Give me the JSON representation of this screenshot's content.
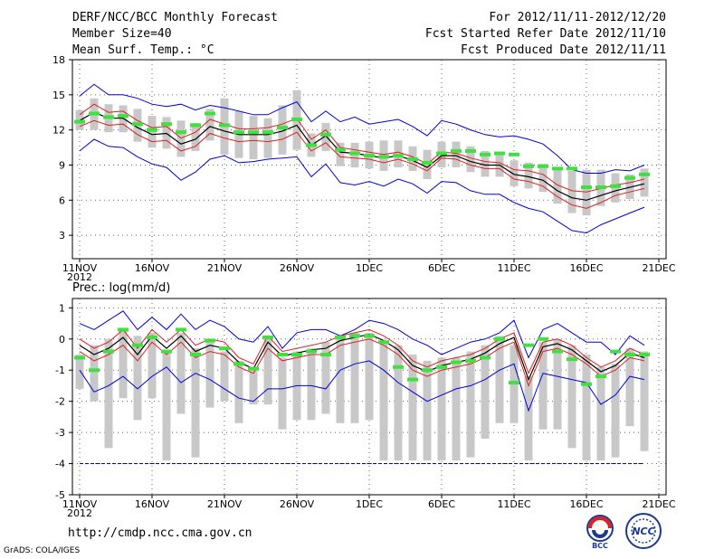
{
  "header": {
    "title": "DERF/NCC/BCC Monthly Forecast",
    "members": "Member Size=40",
    "variable": "Mean Surf. Temp.: °C",
    "period": "For 2012/11/11-2012/12/20",
    "started": "Fcst Started Refer Date 2012/11/10",
    "produced": "Fcst Produced Date 2012/11/11"
  },
  "footer": {
    "url": "http://cmdp.ncc.cma.gov.cn",
    "grads": "GrADS: COLA/IGES",
    "logo_bcc": "BCC",
    "logo_ncc": "NCC"
  },
  "colors": {
    "mean": "#000000",
    "spread": "#e02020",
    "range": "#0000d8",
    "box": "#c8c8c8",
    "median": "#40e040",
    "grid": "#666666"
  },
  "chart_data": [
    {
      "type": "line",
      "title": "Mean Surf. Temp.: °C",
      "ylim": [
        1,
        18
      ],
      "yticks": [
        3,
        6,
        9,
        12,
        15,
        18
      ],
      "xticks": [
        {
          "day": 1,
          "label": "11NOV",
          "sub": "2012"
        },
        {
          "day": 6,
          "label": "16NOV"
        },
        {
          "day": 11,
          "label": "21NOV"
        },
        {
          "day": 16,
          "label": "26NOV"
        },
        {
          "day": 21,
          "label": "1DEC"
        },
        {
          "day": 26,
          "label": "6DEC"
        },
        {
          "day": 31,
          "label": "11DEC"
        },
        {
          "day": 36,
          "label": "16DEC"
        },
        {
          "day": 41,
          "label": "21DEC"
        }
      ],
      "days": [
        1,
        2,
        3,
        4,
        5,
        6,
        7,
        8,
        9,
        10,
        11,
        12,
        13,
        14,
        15,
        16,
        17,
        18,
        19,
        20,
        21,
        22,
        23,
        24,
        25,
        26,
        27,
        28,
        29,
        30,
        31,
        32,
        33,
        34,
        35,
        36,
        37,
        38,
        39,
        40
      ],
      "series": [
        {
          "name": "max",
          "values": [
            10.2,
            11.2,
            10.6,
            10.5,
            9.7,
            9.1,
            8.8,
            7.7,
            8.4,
            9.5,
            9.8,
            9.2,
            9.3,
            9.5,
            9.6,
            9.7,
            8.0,
            9.1,
            7.5,
            7.3,
            7.6,
            7.2,
            7.8,
            7.4,
            6.6,
            7.6,
            7.5,
            6.8,
            6.5,
            6.5,
            5.8,
            5.3,
            5.0,
            4.2,
            3.4,
            3.2,
            3.9,
            4.4,
            4.9,
            5.4
          ]
        },
        {
          "name": "min",
          "values": [
            14.9,
            15.9,
            15.0,
            15.0,
            14.7,
            14.2,
            14.0,
            14.2,
            13.7,
            14.1,
            13.9,
            13.6,
            13.3,
            13.3,
            13.9,
            14.4,
            12.7,
            13.6,
            12.7,
            13.1,
            12.5,
            12.7,
            12.9,
            12.3,
            11.5,
            12.8,
            12.5,
            12.0,
            11.6,
            11.4,
            11.5,
            11.2,
            10.8,
            9.8,
            8.6,
            8.3,
            8.3,
            8.6,
            8.5,
            9.0
          ]
        },
        {
          "name": "lower",
          "values": [
            12.3,
            12.8,
            12.4,
            12.5,
            11.6,
            11.0,
            11.1,
            10.2,
            10.6,
            11.7,
            11.3,
            11.0,
            11.1,
            11.0,
            11.2,
            11.8,
            10.2,
            10.9,
            9.7,
            9.6,
            9.5,
            9.2,
            9.5,
            9.1,
            8.5,
            9.6,
            9.5,
            9.0,
            8.7,
            8.7,
            7.8,
            7.6,
            7.2,
            6.3,
            5.6,
            5.3,
            5.8,
            6.4,
            6.7,
            7.0
          ]
        },
        {
          "name": "upper",
          "values": [
            13.3,
            14.2,
            13.5,
            13.6,
            12.8,
            12.2,
            12.3,
            11.3,
            11.8,
            12.9,
            12.5,
            12.1,
            12.1,
            12.2,
            12.5,
            13.0,
            11.2,
            12.0,
            10.5,
            10.3,
            10.1,
            9.9,
            10.1,
            9.7,
            9.1,
            10.1,
            10.0,
            9.6,
            9.3,
            9.2,
            8.6,
            8.5,
            8.2,
            7.3,
            6.8,
            6.7,
            7.0,
            7.3,
            7.5,
            7.8
          ]
        },
        {
          "name": "ensemble mean",
          "values": [
            12.8,
            13.5,
            13.0,
            13.0,
            12.2,
            11.6,
            11.7,
            10.8,
            11.2,
            12.3,
            11.9,
            11.6,
            11.6,
            11.6,
            11.9,
            12.4,
            10.7,
            11.5,
            10.1,
            10.0,
            9.8,
            9.6,
            9.8,
            9.4,
            8.8,
            9.8,
            9.8,
            9.3,
            9.0,
            9.0,
            8.2,
            8.0,
            7.7,
            6.8,
            6.2,
            6.0,
            6.4,
            6.8,
            7.1,
            7.4
          ]
        }
      ],
      "boxes_low": [
        12.0,
        12.0,
        11.8,
        11.8,
        11.0,
        10.5,
        10.4,
        9.7,
        10.2,
        11.1,
        9.9,
        9.6,
        9.5,
        9.6,
        9.9,
        10.3,
        9.7,
        10.2,
        8.9,
        8.8,
        8.7,
        8.5,
        8.8,
        8.5,
        7.8,
        8.8,
        8.8,
        8.4,
        8.0,
        8.0,
        7.2,
        7.0,
        6.7,
        5.7,
        4.9,
        4.7,
        5.5,
        5.8,
        6.1,
        6.3
      ],
      "boxes_high": [
        13.7,
        14.7,
        14.2,
        14.1,
        13.8,
        13.2,
        13.1,
        12.8,
        12.6,
        13.8,
        14.7,
        13.6,
        13.2,
        13.0,
        14.1,
        15.4,
        11.7,
        12.6,
        10.9,
        10.9,
        11.0,
        11.1,
        11.1,
        10.6,
        10.3,
        11.0,
        11.0,
        10.6,
        10.2,
        10.1,
        9.4,
        9.2,
        9.1,
        8.6,
        8.5,
        8.6,
        8.6,
        8.3,
        8.2,
        8.7
      ],
      "medians": [
        12.7,
        13.4,
        13.1,
        13.2,
        12.5,
        12.0,
        12.5,
        11.8,
        12.4,
        13.4,
        12.4,
        11.8,
        11.8,
        11.8,
        12.2,
        12.9,
        10.7,
        11.6,
        10.3,
        10.0,
        9.8,
        9.7,
        9.8,
        9.5,
        9.2,
        10.0,
        10.2,
        10.2,
        9.9,
        10.0,
        9.9,
        8.9,
        8.9,
        8.7,
        8.7,
        7.1,
        7.1,
        7.2,
        7.9,
        8.2
      ]
    },
    {
      "type": "line",
      "title": "Prec.: log(mm/d)",
      "ylim": [
        -5,
        1.3
      ],
      "yticks": [
        -5,
        -4,
        -3,
        -2,
        -1,
        0,
        1
      ],
      "xticks": [
        {
          "day": 1,
          "label": "11NOV",
          "sub": "2012"
        },
        {
          "day": 6,
          "label": "16NOV"
        },
        {
          "day": 11,
          "label": "21NOV"
        },
        {
          "day": 16,
          "label": "26NOV"
        },
        {
          "day": 21,
          "label": "1DEC"
        },
        {
          "day": 26,
          "label": "6DEC"
        },
        {
          "day": 31,
          "label": "11DEC"
        },
        {
          "day": 36,
          "label": "16DEC"
        },
        {
          "day": 41,
          "label": "21DEC"
        }
      ],
      "days": [
        1,
        2,
        3,
        4,
        5,
        6,
        7,
        8,
        9,
        10,
        11,
        12,
        13,
        14,
        15,
        16,
        17,
        18,
        19,
        20,
        21,
        22,
        23,
        24,
        25,
        26,
        27,
        28,
        29,
        30,
        31,
        32,
        33,
        34,
        35,
        36,
        37,
        38,
        39,
        40
      ],
      "series": [
        {
          "name": "max",
          "values": [
            0.5,
            0.3,
            0.6,
            0.9,
            0.3,
            0.7,
            0.3,
            0.8,
            0.3,
            0.6,
            0.4,
            0.0,
            -0.1,
            0.4,
            -0.3,
            0.2,
            0.3,
            0.3,
            0.1,
            0.3,
            0.6,
            0.5,
            0.3,
            0.0,
            -0.2,
            -0.5,
            -0.3,
            -0.1,
            0.0,
            0.2,
            0.6,
            -0.6,
            0.3,
            0.5,
            0.2,
            -0.1,
            -0.1,
            -0.5,
            0.1,
            -0.2
          ]
        },
        {
          "name": "min",
          "values": [
            -1.0,
            -1.7,
            -1.5,
            -1.2,
            -1.6,
            -1.2,
            -0.9,
            -1.4,
            -1.1,
            -1.3,
            -1.6,
            -1.9,
            -2.0,
            -1.6,
            -1.6,
            -1.5,
            -1.5,
            -1.6,
            -1.0,
            -0.8,
            -0.7,
            -1.0,
            -1.4,
            -1.7,
            -2.0,
            -1.8,
            -1.6,
            -1.5,
            -1.3,
            -1.0,
            -0.8,
            -2.3,
            -1.1,
            -1.2,
            -1.3,
            -1.4,
            -2.1,
            -1.8,
            -1.2,
            -1.3
          ]
        },
        {
          "name": "lower",
          "values": [
            -0.4,
            -0.7,
            -0.5,
            -0.2,
            -0.7,
            -0.1,
            -0.5,
            -0.1,
            -0.6,
            -0.4,
            -0.5,
            -0.9,
            -1.1,
            -0.3,
            -0.7,
            -0.6,
            -0.5,
            -0.5,
            -0.2,
            -0.1,
            0.0,
            -0.2,
            -0.5,
            -1.0,
            -1.2,
            -1.0,
            -0.9,
            -0.8,
            -0.6,
            -0.3,
            -0.1,
            -1.5,
            -0.4,
            -0.3,
            -0.5,
            -0.8,
            -1.2,
            -1.0,
            -0.6,
            -0.7
          ]
        },
        {
          "name": "upper",
          "values": [
            0.0,
            -0.3,
            -0.1,
            0.3,
            -0.3,
            0.3,
            -0.1,
            0.3,
            -0.2,
            0.0,
            -0.1,
            -0.6,
            -0.8,
            0.1,
            -0.4,
            -0.3,
            -0.2,
            -0.1,
            0.1,
            0.2,
            0.3,
            0.1,
            -0.2,
            -0.7,
            -0.9,
            -0.7,
            -0.6,
            -0.5,
            -0.3,
            0.0,
            0.2,
            -1.1,
            -0.1,
            0.0,
            -0.2,
            -0.6,
            -0.9,
            -0.7,
            -0.3,
            -0.5
          ]
        },
        {
          "name": "ensemble mean",
          "values": [
            -0.2,
            -0.5,
            -0.3,
            0.05,
            -0.5,
            0.1,
            -0.3,
            0.1,
            -0.4,
            -0.2,
            -0.3,
            -0.75,
            -0.95,
            -0.1,
            -0.55,
            -0.45,
            -0.35,
            -0.3,
            -0.05,
            0.05,
            0.15,
            -0.05,
            -0.35,
            -0.85,
            -1.05,
            -0.85,
            -0.75,
            -0.65,
            -0.45,
            -0.15,
            0.05,
            -1.3,
            -0.25,
            -0.15,
            -0.35,
            -0.7,
            -1.05,
            -0.85,
            -0.45,
            -0.6
          ]
        }
      ],
      "boxes_low": [
        -1.6,
        -2.0,
        -3.5,
        -1.9,
        -2.6,
        -1.9,
        -3.9,
        -2.4,
        -3.8,
        -2.2,
        -2.0,
        -2.7,
        -2.1,
        -2.1,
        -2.9,
        -2.6,
        -2.6,
        -2.4,
        -2.7,
        -2.7,
        -2.6,
        -3.9,
        -3.9,
        -3.9,
        -3.9,
        -3.9,
        -3.9,
        -3.8,
        -3.2,
        -2.7,
        -2.7,
        -3.9,
        -2.9,
        -2.9,
        -3.5,
        -3.9,
        -3.9,
        -3.8,
        -2.8,
        -3.6
      ],
      "boxes_high": [
        -0.5,
        -0.2,
        0.0,
        0.3,
        0.1,
        0.2,
        -0.4,
        0.2,
        -0.3,
        -0.1,
        -0.4,
        -0.7,
        -0.9,
        0.1,
        -0.6,
        -0.4,
        -0.3,
        -0.1,
        0.1,
        0.2,
        0.2,
        -0.1,
        -0.2,
        -0.5,
        -0.7,
        -0.6,
        -0.6,
        -0.4,
        -0.2,
        0.1,
        -0.2,
        -1.2,
        -0.1,
        0.0,
        -0.2,
        -0.5,
        -0.9,
        -0.8,
        -0.3,
        -0.4
      ],
      "medians": [
        -0.6,
        -1.0,
        -0.4,
        0.3,
        -0.2,
        0.05,
        -0.4,
        0.3,
        -0.5,
        -0.05,
        -0.3,
        -0.8,
        -0.95,
        0.05,
        -0.5,
        -0.5,
        -0.4,
        -0.5,
        0.05,
        0.1,
        0.1,
        -0.1,
        -0.9,
        -1.3,
        -1.0,
        -0.9,
        -0.75,
        -0.7,
        -0.6,
        0.0,
        -1.4,
        -0.2,
        0.0,
        -0.4,
        -0.65,
        -1.45,
        -1.2,
        -0.4,
        -0.5,
        -0.5
      ],
      "threshold": -4
    }
  ]
}
